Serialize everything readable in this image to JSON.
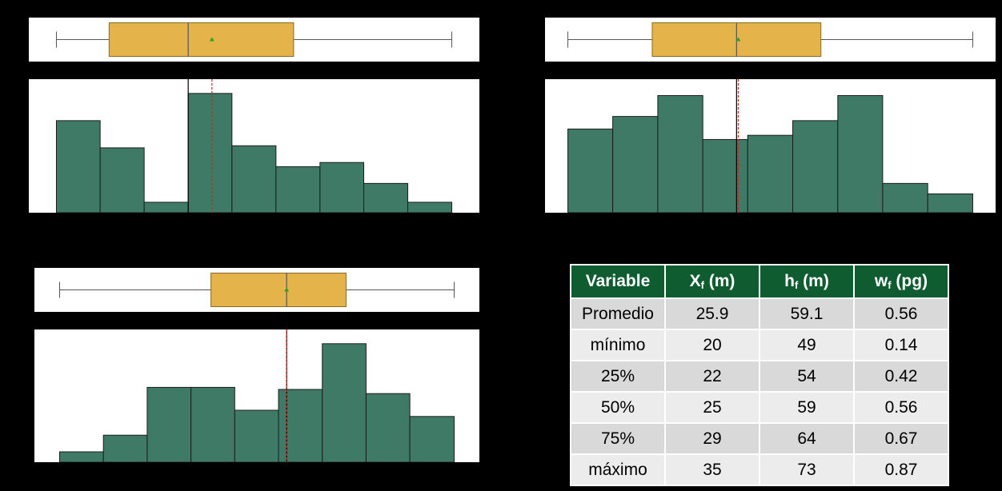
{
  "colors": {
    "background": "#000000",
    "box_fill": "#e4b44a",
    "box_stroke": "#8a6a1f",
    "bar_fill": "#3f7a66",
    "bar_stroke": "#1c1c1c",
    "mean_marker": "#2aa12a",
    "mean_line": "#d62020",
    "table_header": "#0e5c2f"
  },
  "chart_data": [
    {
      "type": "box",
      "panel": "top-left",
      "orientation": "horizontal",
      "xlim": [
        19.5,
        35.5
      ],
      "min": 20,
      "q1": 22,
      "median": 25,
      "q3": 29,
      "max": 35,
      "mean": 25.9
    },
    {
      "type": "bar",
      "panel": "top-left",
      "bins": [
        [
          20,
          21.66
        ],
        [
          21.66,
          23.33
        ],
        [
          23.33,
          25
        ],
        [
          25,
          26.66
        ],
        [
          26.66,
          28.33
        ],
        [
          28.33,
          30
        ],
        [
          30,
          31.66
        ],
        [
          31.66,
          33.33
        ],
        [
          33.33,
          35
        ]
      ],
      "values": [
        44,
        31,
        5,
        57,
        32,
        22,
        24,
        14,
        5
      ],
      "ylim": [
        0,
        60
      ],
      "xlim": [
        19.5,
        35.5
      ],
      "mean_line": 25.9,
      "median_line": 25
    },
    {
      "type": "box",
      "panel": "top-right",
      "orientation": "horizontal",
      "xlim": [
        48.5,
        73.5
      ],
      "min": 49,
      "q1": 54,
      "median": 59,
      "q3": 64,
      "max": 73,
      "mean": 59.1
    },
    {
      "type": "bar",
      "panel": "top-right",
      "bins": [
        [
          49,
          51.66
        ],
        [
          51.66,
          54.33
        ],
        [
          54.33,
          57
        ],
        [
          57,
          59.66
        ],
        [
          59.66,
          62.33
        ],
        [
          62.33,
          65
        ],
        [
          65,
          67.66
        ],
        [
          67.66,
          70.33
        ],
        [
          70.33,
          73
        ]
      ],
      "values": [
        40,
        46,
        56,
        35,
        37,
        44,
        56,
        14,
        9
      ],
      "ylim": [
        0,
        60
      ],
      "xlim": [
        48.5,
        73.5
      ],
      "mean_line": 59.1,
      "median_line": 59
    },
    {
      "type": "box",
      "panel": "bottom-left",
      "orientation": "horizontal",
      "xlim": [
        0.12,
        0.89
      ],
      "min": 0.14,
      "q1": 0.42,
      "median": 0.56,
      "q3": 0.67,
      "max": 0.87,
      "mean": 0.56
    },
    {
      "type": "bar",
      "panel": "bottom-left",
      "bins": [
        [
          0.14,
          0.221
        ],
        [
          0.221,
          0.302
        ],
        [
          0.302,
          0.383
        ],
        [
          0.383,
          0.464
        ],
        [
          0.464,
          0.545
        ],
        [
          0.545,
          0.626
        ],
        [
          0.626,
          0.707
        ],
        [
          0.707,
          0.788
        ],
        [
          0.788,
          0.87
        ]
      ],
      "values": [
        5,
        13,
        36,
        36,
        25,
        35,
        57,
        33,
        22
      ],
      "ylim": [
        0,
        60
      ],
      "xlim": [
        0.12,
        0.89
      ],
      "mean_line": 0.56,
      "median_line": 0.56
    },
    {
      "type": "table",
      "headers": [
        {
          "main": "Variable",
          "sub": "",
          "unit": ""
        },
        {
          "main": "X",
          "sub": "f",
          "unit": " (m)"
        },
        {
          "main": "h",
          "sub": "f",
          "unit": " (m)"
        },
        {
          "main": "w",
          "sub": "f",
          "unit": " (pg)"
        }
      ],
      "rows": [
        [
          "Promedio",
          "25.9",
          "59.1",
          "0.56"
        ],
        [
          "mínimo",
          "20",
          "49",
          "0.14"
        ],
        [
          "25%",
          "22",
          "54",
          "0.42"
        ],
        [
          "50%",
          "25",
          "59",
          "0.56"
        ],
        [
          "75%",
          "29",
          "64",
          "0.67"
        ],
        [
          "máximo",
          "35",
          "73",
          "0.87"
        ]
      ]
    }
  ]
}
